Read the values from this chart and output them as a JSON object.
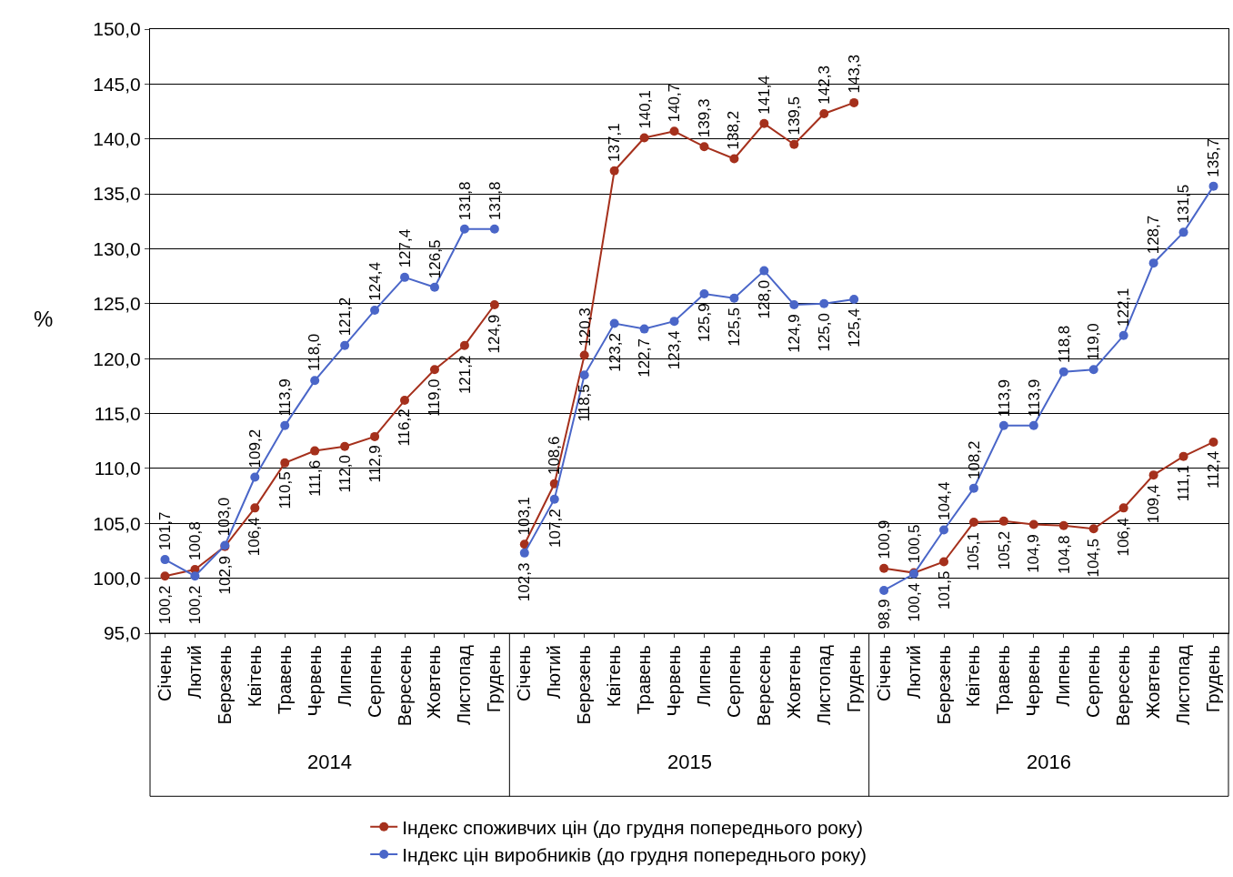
{
  "chart_data": {
    "type": "line",
    "ylabel": "%",
    "categories": [
      "Січень",
      "Лютий",
      "Березень",
      "Квітень",
      "Травень",
      "Червень",
      "Липень",
      "Серпень",
      "Вересень",
      "Жовтень",
      "Листопад",
      "Грудень",
      "Січень",
      "Лютий",
      "Березень",
      "Квітень",
      "Травень",
      "Червень",
      "Липень",
      "Серпень",
      "Вересень",
      "Жовтень",
      "Листопад",
      "Грудень",
      "Січень",
      "Лютий",
      "Березень",
      "Квітень",
      "Травень",
      "Червень",
      "Липень",
      "Серпень",
      "Вересень",
      "Жовтень",
      "Листопад",
      "Грудень"
    ],
    "series": [
      {
        "name": "Індекс споживчих цін (до грудня попереднього року)",
        "color": "#a5301c",
        "values": [
          100.2,
          100.8,
          102.9,
          106.4,
          110.5,
          111.6,
          112.0,
          112.9,
          116.2,
          119.0,
          121.2,
          124.9,
          103.1,
          108.6,
          120.3,
          137.1,
          140.1,
          140.7,
          139.3,
          138.2,
          141.4,
          139.5,
          142.3,
          143.3,
          100.9,
          100.5,
          101.5,
          105.1,
          105.2,
          104.9,
          104.8,
          104.5,
          106.4,
          109.4,
          111.1,
          112.4
        ],
        "value_labels": [
          "100,2",
          "100,8",
          "102,9",
          "106,4",
          "110,5",
          "111,6",
          "112,0",
          "112,9",
          "116,2",
          "119,0",
          "121,2",
          "124,9",
          "103,1",
          "108,6",
          "120,3",
          "137,1",
          "140,1",
          "140,7",
          "139,3",
          "138,2",
          "141,4",
          "139,5",
          "142,3",
          "143,3",
          "100,9",
          "100,5",
          "101,5",
          "105,1",
          "105,2",
          "104,9",
          "104,8",
          "104,5",
          "106,4",
          "109,4",
          "111,1",
          "112,4"
        ]
      },
      {
        "name": "Індекс цін виробників (до грудня попереднього року)",
        "color": "#4a66c8",
        "values": [
          101.7,
          100.2,
          103.0,
          109.2,
          113.9,
          118.0,
          121.2,
          124.4,
          127.4,
          126.5,
          131.8,
          131.8,
          102.3,
          107.2,
          118.5,
          123.2,
          122.7,
          123.4,
          125.9,
          125.5,
          128.0,
          124.9,
          125.0,
          125.4,
          98.9,
          100.4,
          104.4,
          108.2,
          113.9,
          113.9,
          118.8,
          119.0,
          122.1,
          128.7,
          131.5,
          135.7
        ],
        "value_labels": [
          "101,7",
          "100,2",
          "103,0",
          "109,2",
          "113,9",
          "118,0",
          "121,2",
          "124,4",
          "127,4",
          "126,5",
          "131,8",
          "131,8",
          "102,3",
          "107,2",
          "118,5",
          "123,2",
          "122,7",
          "123,4",
          "125,9",
          "125,5",
          "128,0",
          "124,9",
          "125,0",
          "125,4",
          "98,9",
          "100,4",
          "104,4",
          "108,2",
          "113,9",
          "113,9",
          "118,8",
          "119,0",
          "122,1",
          "128,7",
          "131,5",
          "135,7"
        ]
      }
    ],
    "ylim": [
      95,
      150
    ],
    "yticks": [
      {
        "value": 95,
        "label": "95,0"
      },
      {
        "value": 100,
        "label": "100,0"
      },
      {
        "value": 105,
        "label": "105,0"
      },
      {
        "value": 110,
        "label": "110,0"
      },
      {
        "value": 115,
        "label": "115,0"
      },
      {
        "value": 120,
        "label": "120,0"
      },
      {
        "value": 125,
        "label": "125,0"
      },
      {
        "value": 130,
        "label": "130,0"
      },
      {
        "value": 135,
        "label": "135,0"
      },
      {
        "value": 140,
        "label": "140,0"
      },
      {
        "value": 145,
        "label": "145,0"
      },
      {
        "value": 150,
        "label": "150,0"
      }
    ],
    "annotations": [
      "2014",
      "2015",
      "2016"
    ],
    "grid": "y",
    "legend": "bottom",
    "marker": "circle",
    "line_style": "solid"
  }
}
